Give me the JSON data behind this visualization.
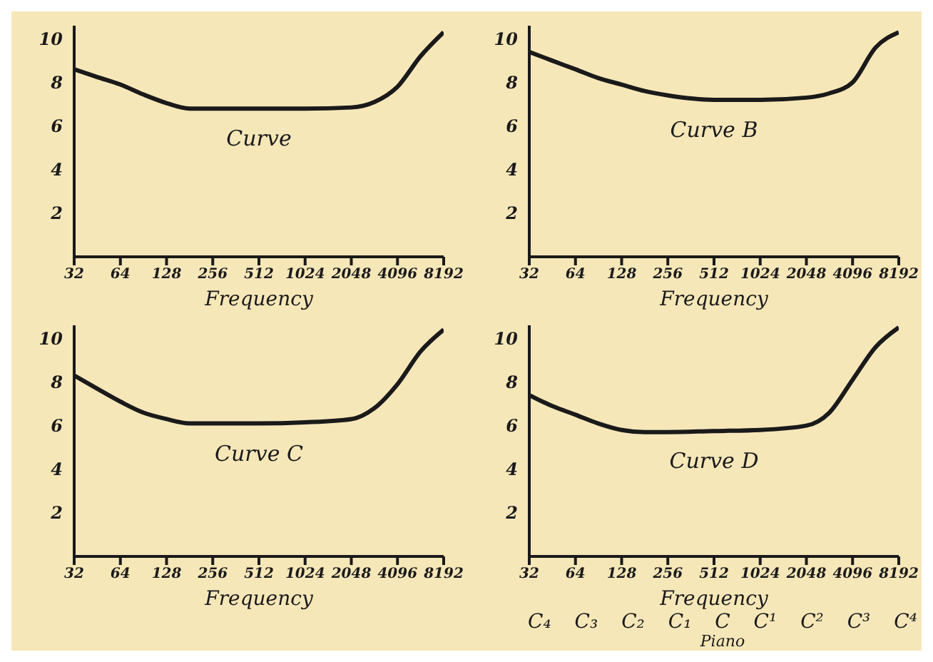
{
  "chart_data": [
    {
      "type": "line",
      "x": [
        32,
        45,
        64,
        90,
        128,
        181,
        256,
        512,
        1024,
        2048,
        2896,
        4096,
        5793,
        8192
      ],
      "series": [
        {
          "name": "Curve",
          "color": "#1a1a1a",
          "values": [
            8.6,
            8.25,
            7.9,
            7.45,
            7.05,
            6.8,
            6.8,
            6.8,
            6.8,
            6.85,
            7.1,
            7.8,
            9.2,
            10.3
          ]
        }
      ],
      "xlabel": "Frequency",
      "log": "x",
      "xlim": [
        32,
        8192
      ],
      "xticks": [
        32,
        64,
        128,
        256,
        512,
        1024,
        2048,
        4096,
        8192
      ],
      "ylim": [
        0,
        10.6
      ],
      "yticks": [
        2,
        4,
        6,
        8,
        10
      ],
      "grid": false,
      "legend": false,
      "marker": "none",
      "line_style": "solid"
    },
    {
      "type": "line",
      "x": [
        32,
        45,
        64,
        90,
        128,
        181,
        256,
        512,
        1024,
        2048,
        2896,
        4096,
        5793,
        8192
      ],
      "series": [
        {
          "name": "Curve B",
          "color": "#1a1a1a",
          "values": [
            9.4,
            9.0,
            8.6,
            8.2,
            7.9,
            7.6,
            7.4,
            7.2,
            7.2,
            7.3,
            7.5,
            8.0,
            9.6,
            10.3
          ]
        }
      ],
      "xlabel": "Frequency",
      "log": "x",
      "xlim": [
        32,
        8192
      ],
      "xticks": [
        32,
        64,
        128,
        256,
        512,
        1024,
        2048,
        4096,
        8192
      ],
      "ylim": [
        0,
        10.6
      ],
      "yticks": [
        2,
        4,
        6,
        8,
        10
      ],
      "grid": false,
      "legend": false,
      "marker": "none",
      "line_style": "solid"
    },
    {
      "type": "line",
      "x": [
        32,
        45,
        64,
        90,
        128,
        181,
        256,
        512,
        1024,
        2048,
        2896,
        4096,
        5793,
        8192
      ],
      "series": [
        {
          "name": "Curve C",
          "color": "#1a1a1a",
          "values": [
            8.3,
            7.7,
            7.1,
            6.6,
            6.3,
            6.1,
            6.1,
            6.1,
            6.15,
            6.3,
            6.8,
            7.9,
            9.4,
            10.4
          ]
        }
      ],
      "xlabel": "Frequency",
      "log": "x",
      "xlim": [
        32,
        8192
      ],
      "xticks": [
        32,
        64,
        128,
        256,
        512,
        1024,
        2048,
        4096,
        8192
      ],
      "ylim": [
        0,
        10.6
      ],
      "yticks": [
        2,
        4,
        6,
        8,
        10
      ],
      "grid": false,
      "legend": false,
      "marker": "none",
      "line_style": "solid"
    },
    {
      "type": "line",
      "x": [
        32,
        45,
        64,
        90,
        128,
        181,
        256,
        512,
        1024,
        2048,
        2896,
        4096,
        5793,
        8192
      ],
      "series": [
        {
          "name": "Curve D",
          "color": "#1a1a1a",
          "values": [
            7.4,
            6.9,
            6.5,
            6.1,
            5.8,
            5.7,
            5.7,
            5.75,
            5.8,
            6.0,
            6.6,
            8.1,
            9.6,
            10.5
          ]
        }
      ],
      "xlabel": "Frequency",
      "log": "x",
      "xlim": [
        32,
        8192
      ],
      "xticks": [
        32,
        64,
        128,
        256,
        512,
        1024,
        2048,
        4096,
        8192
      ],
      "annotations": [
        "C₄ C₃ C₂ C₁ C C¹ C² C³ C⁴",
        "Piano"
      ],
      "ylim": [
        0,
        10.6
      ],
      "yticks": [
        2,
        4,
        6,
        8,
        10
      ],
      "grid": false,
      "legend": false,
      "marker": "none",
      "line_style": "solid"
    }
  ]
}
